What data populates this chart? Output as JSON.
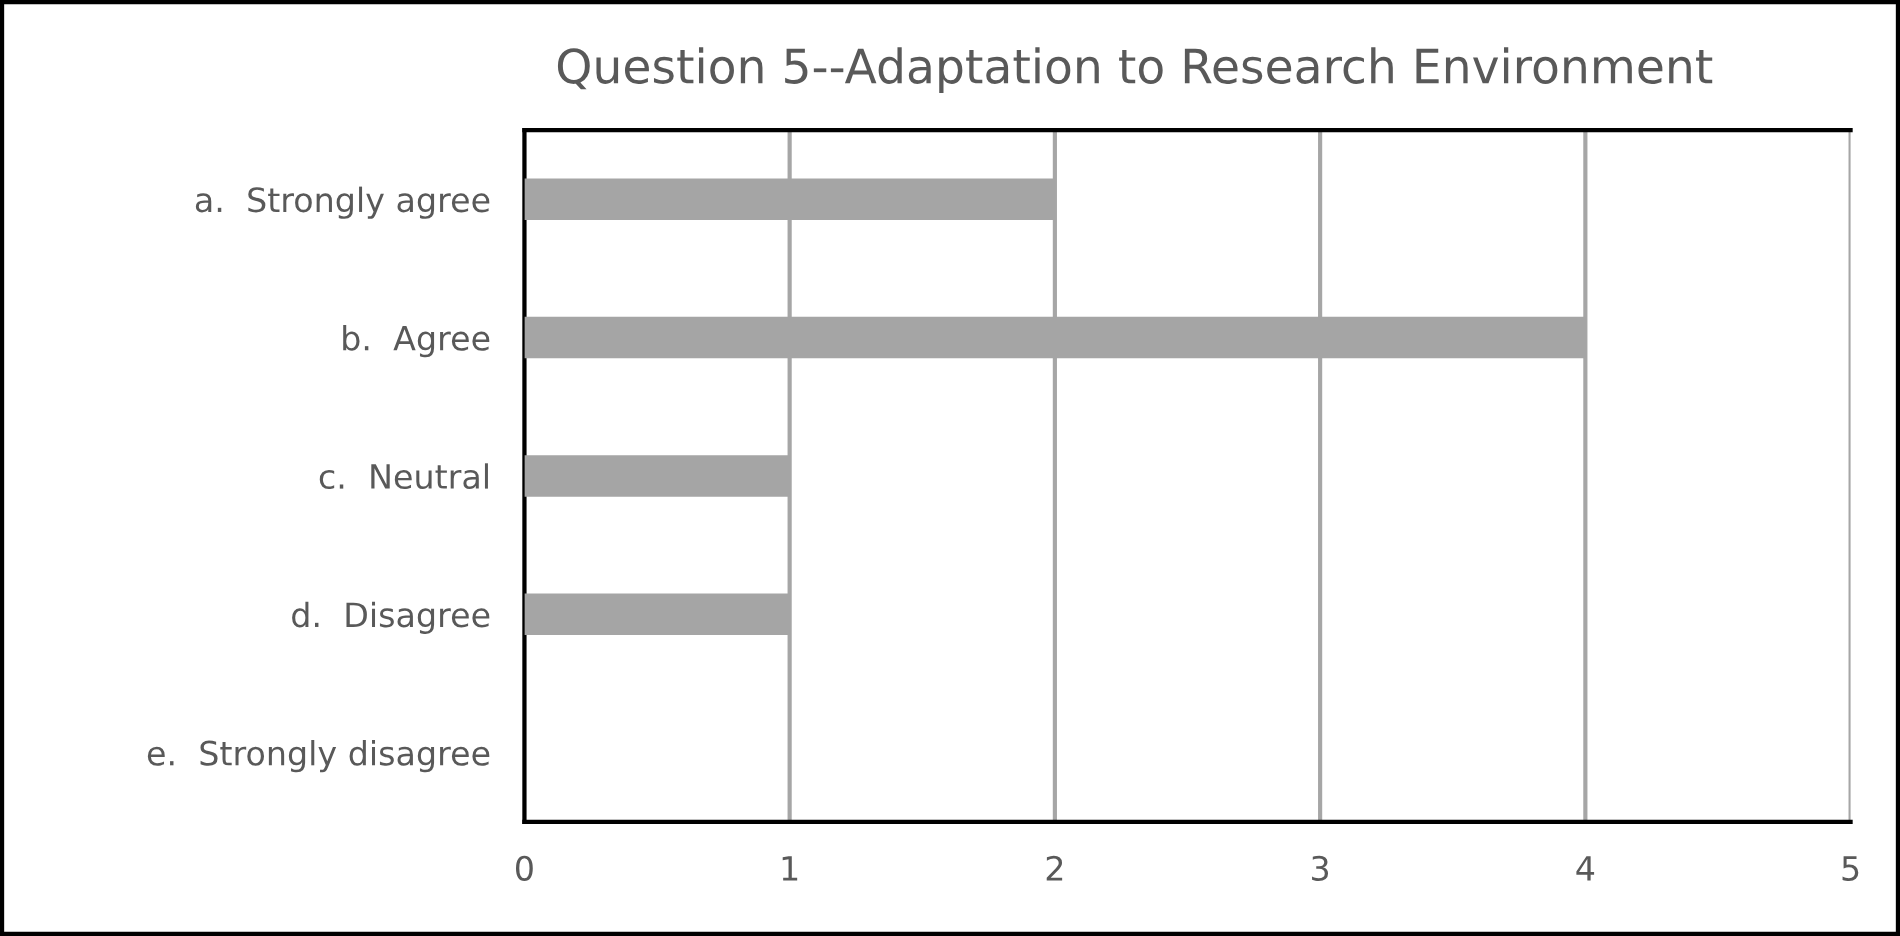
{
  "chart_data": {
    "type": "bar",
    "orientation": "horizontal",
    "title": "Question 5--Adaptation to Research Environment",
    "categories": [
      "a.  Strongly agree",
      "b.  Agree",
      "c.  Neutral",
      "d.  Disagree",
      "e.  Strongly disagree"
    ],
    "values": [
      2,
      4,
      1,
      1,
      0
    ],
    "color": "#a5a5a5",
    "xlim": [
      0,
      5
    ],
    "xticks": [
      0,
      1,
      2,
      3,
      4,
      5
    ],
    "grid": "x",
    "legend": false
  }
}
